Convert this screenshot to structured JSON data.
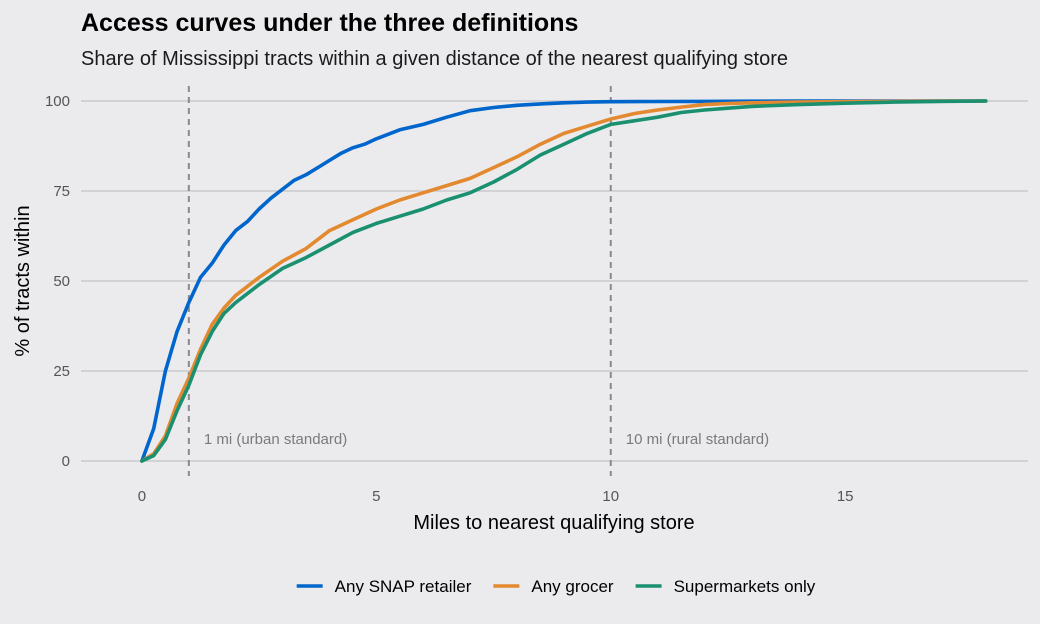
{
  "chart_data": {
    "type": "line",
    "title": "Access curves under the three definitions",
    "subtitle": "Share of Mississippi tracts within a given distance of the nearest qualifying store",
    "xlabel": "Miles to nearest qualifying store",
    "ylabel": "% of tracts within",
    "xlim": [
      -1.3,
      18.9
    ],
    "ylim": [
      0,
      100
    ],
    "xticks": [
      0,
      5,
      10,
      15
    ],
    "yticks": [
      0,
      25,
      50,
      75,
      100
    ],
    "grid": "horizontal",
    "legend_position": "bottom",
    "reference_lines": [
      {
        "x": 1,
        "label": "1 mi (urban standard)"
      },
      {
        "x": 10,
        "label": "10 mi (rural standard)"
      }
    ],
    "series": [
      {
        "name": "Any SNAP retailer",
        "color": "#0066cc",
        "x": [
          0,
          0.25,
          0.5,
          0.75,
          1.0,
          1.25,
          1.5,
          1.75,
          2.0,
          2.25,
          2.5,
          2.75,
          3.0,
          3.25,
          3.5,
          3.75,
          4.0,
          4.25,
          4.5,
          4.75,
          5.0,
          5.5,
          6.0,
          6.5,
          7.0,
          7.5,
          8.0,
          8.5,
          9.0,
          9.5,
          10.0,
          11.0,
          12.0,
          13.0,
          14.0,
          15.0,
          16.0,
          17.0,
          18.0
        ],
        "y": [
          0,
          9,
          25,
          36,
          44,
          51,
          55,
          60,
          64,
          66.5,
          70,
          73,
          75.5,
          78,
          79.5,
          81.5,
          83.5,
          85.5,
          87,
          88,
          89.5,
          92,
          93.5,
          95.5,
          97.3,
          98.2,
          98.8,
          99.2,
          99.5,
          99.7,
          99.8,
          99.85,
          99.9,
          99.95,
          100,
          100,
          100,
          100,
          100
        ]
      },
      {
        "name": "Any grocer",
        "color": "#e3892f",
        "x": [
          0,
          0.25,
          0.5,
          0.75,
          1.0,
          1.25,
          1.5,
          1.75,
          2.0,
          2.5,
          3.0,
          3.5,
          4.0,
          4.5,
          5.0,
          5.5,
          6.0,
          6.5,
          7.0,
          7.5,
          8.0,
          8.5,
          9.0,
          9.5,
          10.0,
          10.5,
          11.0,
          11.5,
          12.0,
          12.5,
          13.0,
          14.0,
          15.0,
          16.0,
          17.0,
          18.0
        ],
        "y": [
          0,
          2,
          7,
          16,
          23,
          31,
          38,
          42.5,
          46,
          51,
          55.5,
          59,
          64,
          67,
          70,
          72.5,
          74.5,
          76.5,
          78.5,
          81.5,
          84.5,
          88,
          91,
          93,
          95,
          96.5,
          97.5,
          98.3,
          99,
          99.3,
          99.5,
          99.7,
          99.8,
          99.9,
          100,
          100
        ]
      },
      {
        "name": "Supermarkets only",
        "color": "#1a9070",
        "x": [
          0,
          0.25,
          0.5,
          0.75,
          1.0,
          1.25,
          1.5,
          1.75,
          2.0,
          2.5,
          3.0,
          3.5,
          4.0,
          4.5,
          5.0,
          5.5,
          6.0,
          6.5,
          7.0,
          7.5,
          8.0,
          8.5,
          9.0,
          9.5,
          10.0,
          10.5,
          11.0,
          11.5,
          12.0,
          12.5,
          13.0,
          14.0,
          15.0,
          16.0,
          17.0,
          18.0
        ],
        "y": [
          0,
          1.5,
          6,
          14,
          21,
          29.5,
          36,
          41,
          44,
          49,
          53.5,
          56.5,
          60,
          63.5,
          66,
          68,
          70,
          72.5,
          74.5,
          77.5,
          81,
          85,
          88,
          91,
          93.5,
          94.5,
          95.5,
          96.8,
          97.5,
          98,
          98.5,
          99,
          99.4,
          99.7,
          99.9,
          100
        ]
      }
    ]
  }
}
